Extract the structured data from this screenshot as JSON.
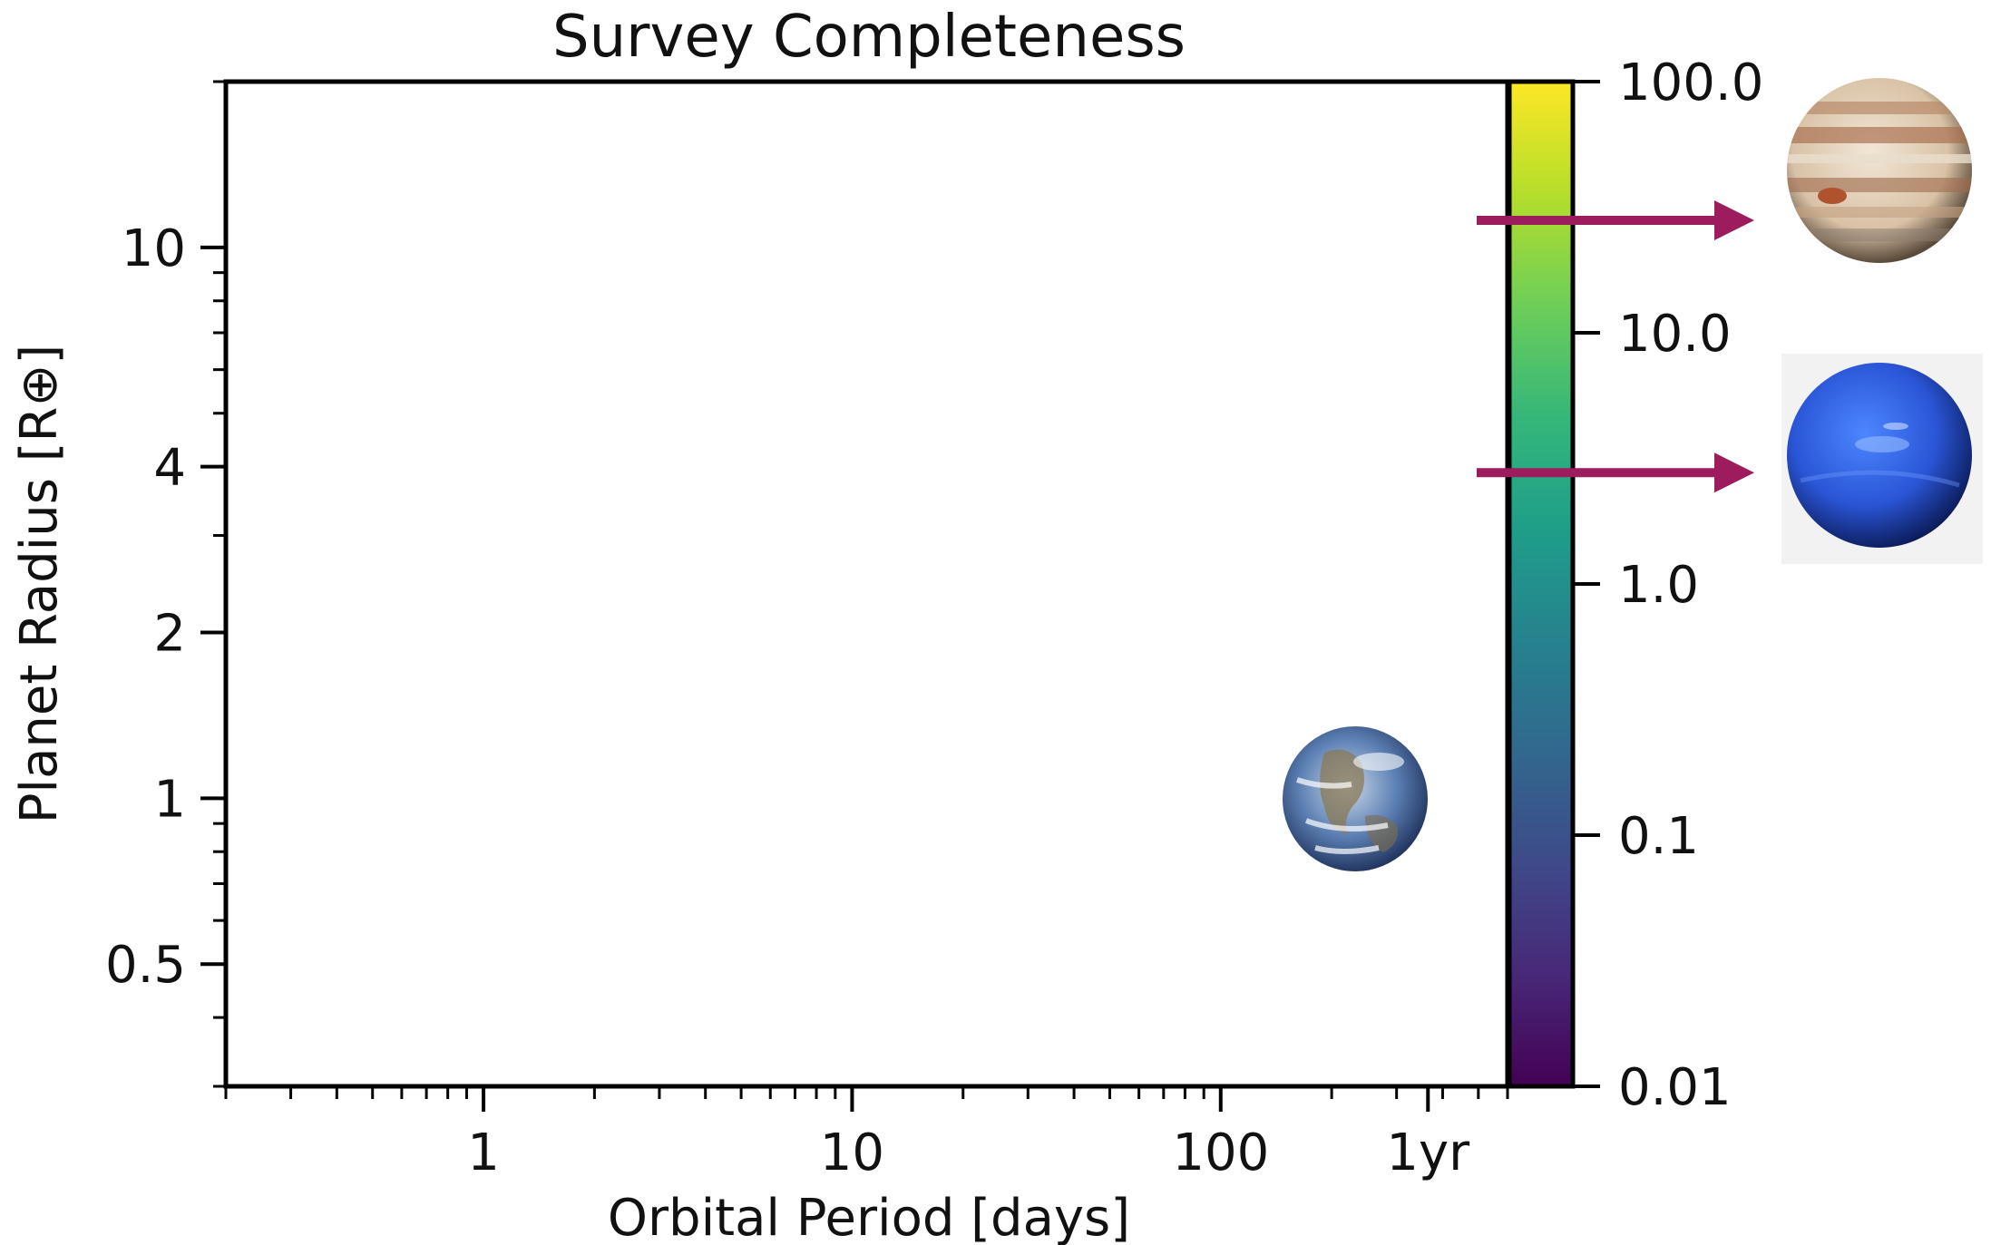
{
  "chart_data": {
    "type": "scatter",
    "title": "Survey Completeness",
    "xlabel": "Orbital Period [days]",
    "ylabel": "Planet Radius [R⊕]",
    "x_scale": "log",
    "y_scale": "log",
    "xlim": [
      0.2,
      600
    ],
    "ylim": [
      0.3,
      20
    ],
    "grid": false,
    "x_ticks": [
      {
        "value": 1,
        "label": "1"
      },
      {
        "value": 10,
        "label": "10"
      },
      {
        "value": 100,
        "label": "100"
      },
      {
        "value": 365,
        "label": "1yr"
      }
    ],
    "y_ticks": [
      {
        "value": 0.5,
        "label": "0.5"
      },
      {
        "value": 1,
        "label": "1"
      },
      {
        "value": 2,
        "label": "2"
      },
      {
        "value": 4,
        "label": "4"
      },
      {
        "value": 10,
        "label": "10"
      }
    ],
    "colorbar": {
      "colormap": "viridis",
      "scale": "log",
      "range": [
        0.01,
        100
      ],
      "ticks": [
        {
          "value": 0.01,
          "label": "0.01"
        },
        {
          "value": 0.1,
          "label": "0.1"
        },
        {
          "value": 1,
          "label": "1.0"
        },
        {
          "value": 10,
          "label": "10.0"
        },
        {
          "value": 100,
          "label": "100.0"
        }
      ],
      "colors": [
        "#440154",
        "#482878",
        "#3e4a89",
        "#31688e",
        "#26828e",
        "#1f9e89",
        "#35b779",
        "#6ece58",
        "#b5de2b",
        "#fde725"
      ]
    },
    "markers": [
      {
        "name": "earth-icon",
        "x": 365,
        "y": 1
      },
      {
        "name": "jupiter-icon",
        "y": 11.2
      },
      {
        "name": "neptune-icon",
        "y": 3.9
      }
    ],
    "arrow_color": "#9c1c5e"
  }
}
